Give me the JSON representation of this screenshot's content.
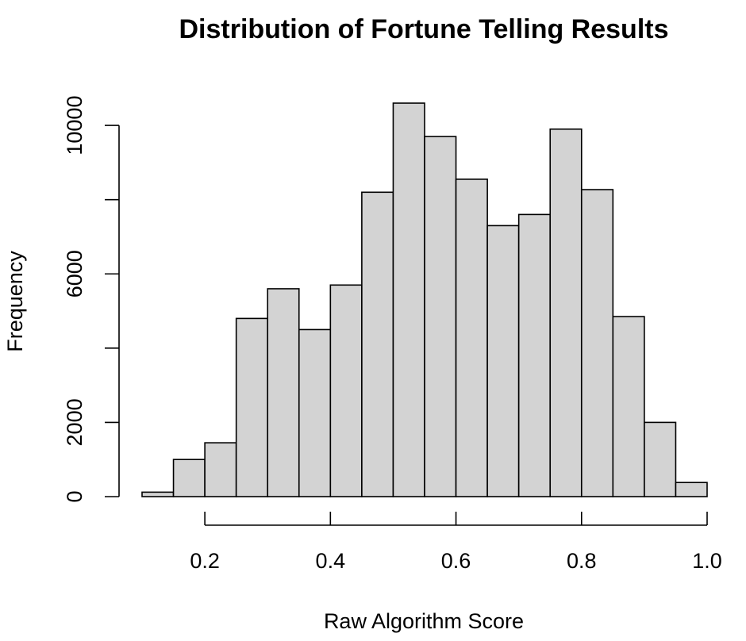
{
  "chart_data": {
    "type": "bar",
    "title": "Distribution of Fortune Telling Results",
    "xlabel": "Raw Algorithm Score",
    "ylabel": "Frequency",
    "bin_edges": [
      0.1,
      0.15,
      0.2,
      0.25,
      0.3,
      0.35,
      0.4,
      0.45,
      0.5,
      0.55,
      0.6,
      0.65,
      0.7,
      0.75,
      0.8,
      0.85,
      0.9,
      0.95,
      1.0
    ],
    "values": [
      120,
      1000,
      1450,
      4800,
      5600,
      4500,
      5700,
      8200,
      10600,
      9700,
      8550,
      7300,
      7600,
      9900,
      8270,
      4850,
      2000,
      380
    ],
    "xlim": [
      0.1,
      1.0
    ],
    "ylim": [
      0,
      10600
    ],
    "xticks": [
      "0.2",
      "0.4",
      "0.6",
      "0.8",
      "1.0"
    ],
    "yticks": [
      "0",
      "2000",
      "6000",
      "10000"
    ],
    "bar_color": "#d3d3d3",
    "edge_color": "#000000",
    "grid": false
  }
}
